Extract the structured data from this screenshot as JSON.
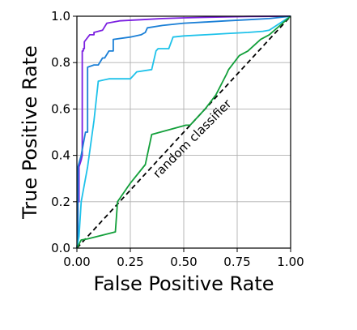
{
  "chart_data": {
    "type": "line",
    "title": "",
    "xlabel": "False Positive Rate",
    "ylabel": "True Positive Rate",
    "xlim": [
      0,
      1
    ],
    "ylim": [
      0,
      1
    ],
    "xticks": [
      "0.00",
      "0.25",
      "0.50",
      "0.75",
      "1.00"
    ],
    "yticks": [
      "0.0",
      "0.2",
      "0.4",
      "0.6",
      "0.8",
      "1.0"
    ],
    "grid": true,
    "legend": "none",
    "annotation": "random classifier",
    "series": [
      {
        "color": "#7b1fe0",
        "x": [
          0,
          0.005,
          0.005,
          0.01,
          0.01,
          0.02,
          0.02,
          0.025,
          0.025,
          0.03,
          0.03,
          0.035,
          0.035,
          0.06,
          0.08,
          0.08,
          0.12,
          0.14,
          0.2,
          0.3,
          0.4,
          0.5,
          0.6,
          0.7,
          0.8,
          1.0
        ],
        "y": [
          0,
          0.05,
          0.2,
          0.2,
          0.35,
          0.38,
          0.38,
          0.4,
          0.85,
          0.85,
          0.86,
          0.86,
          0.89,
          0.92,
          0.92,
          0.93,
          0.94,
          0.97,
          0.98,
          0.985,
          0.99,
          0.993,
          0.995,
          0.997,
          0.999,
          1.0
        ]
      },
      {
        "color": "#1a7fd6",
        "x": [
          0,
          0.005,
          0.005,
          0.02,
          0.04,
          0.05,
          0.05,
          0.08,
          0.1,
          0.12,
          0.13,
          0.15,
          0.17,
          0.17,
          0.25,
          0.3,
          0.32,
          0.33,
          0.4,
          0.5,
          0.6,
          0.7,
          0.8,
          0.9,
          1.0
        ],
        "y": [
          0,
          0.05,
          0.35,
          0.4,
          0.5,
          0.5,
          0.78,
          0.79,
          0.79,
          0.82,
          0.82,
          0.85,
          0.85,
          0.9,
          0.91,
          0.92,
          0.93,
          0.95,
          0.96,
          0.97,
          0.975,
          0.98,
          0.985,
          0.99,
          1.0
        ]
      },
      {
        "color": "#1ec2ea",
        "x": [
          0,
          0.01,
          0.02,
          0.05,
          0.08,
          0.1,
          0.15,
          0.25,
          0.27,
          0.28,
          0.35,
          0.37,
          0.38,
          0.43,
          0.45,
          0.5,
          0.6,
          0.7,
          0.8,
          0.87,
          0.9,
          1.0
        ],
        "y": [
          0,
          0.05,
          0.2,
          0.35,
          0.55,
          0.72,
          0.73,
          0.73,
          0.75,
          0.76,
          0.77,
          0.85,
          0.86,
          0.86,
          0.91,
          0.915,
          0.92,
          0.925,
          0.93,
          0.935,
          0.94,
          1.0
        ]
      },
      {
        "color": "#129f3a",
        "x": [
          0,
          0.02,
          0.05,
          0.18,
          0.19,
          0.25,
          0.32,
          0.35,
          0.51,
          0.53,
          0.6,
          0.65,
          0.7,
          0.71,
          0.76,
          0.8,
          0.86,
          0.9,
          1.0
        ],
        "y": [
          0,
          0.035,
          0.04,
          0.07,
          0.2,
          0.28,
          0.36,
          0.49,
          0.53,
          0.53,
          0.6,
          0.66,
          0.75,
          0.77,
          0.83,
          0.85,
          0.9,
          0.92,
          1.0
        ]
      }
    ],
    "reference_line": {
      "x": [
        0,
        1
      ],
      "y": [
        0,
        1
      ],
      "style": "dashed",
      "color": "#000000"
    }
  }
}
